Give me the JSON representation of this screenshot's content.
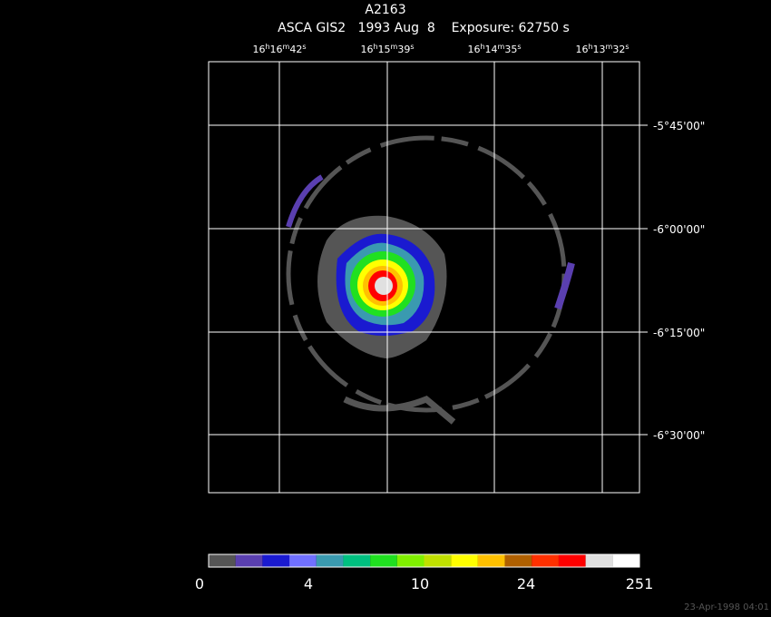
{
  "header": {
    "title": "A2163",
    "subtitle": "ASCA GIS2   1993 Aug  8    Exposure: 62750 s"
  },
  "ra_labels": [
    {
      "parts": [
        "16",
        "h",
        "16",
        "m",
        "42",
        "s"
      ]
    },
    {
      "parts": [
        "16",
        "h",
        "15",
        "m",
        "39",
        "s"
      ]
    },
    {
      "parts": [
        "16",
        "h",
        "14",
        "m",
        "35",
        "s"
      ]
    },
    {
      "parts": [
        "16",
        "h",
        "13",
        "m",
        "32",
        "s"
      ]
    }
  ],
  "dec_labels": [
    "-5°45'00\"",
    "-6°00'00\"",
    "-6°15'00\"",
    "-6°30'00\""
  ],
  "colorbar": {
    "colors": [
      "#555555",
      "#5a3fb0",
      "#1a1ad0",
      "#7070ff",
      "#3a9ab0",
      "#00c080",
      "#20e020",
      "#80f000",
      "#c0e000",
      "#ffff00",
      "#ffc000",
      "#b06000",
      "#ff3000",
      "#ff0000",
      "#e0e0e0",
      "#ffffff"
    ],
    "labels": [
      "0",
      "4",
      "10",
      "24",
      "251"
    ]
  },
  "timestamp": "23-Apr-1998 04:01"
}
